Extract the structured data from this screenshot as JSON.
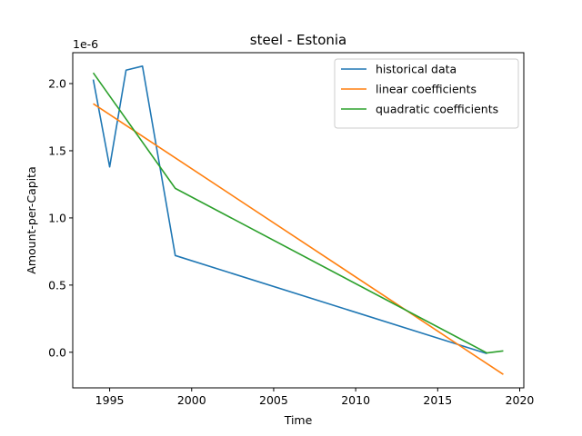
{
  "chart_data": {
    "type": "line",
    "title": "steel - Estonia",
    "xlabel": "Time",
    "ylabel": "Amount-per-Capita",
    "y_offset_label": "1e-6",
    "xlim": [
      1992.75,
      2020.25
    ],
    "ylim": [
      -0.265,
      2.23
    ],
    "x_ticks": [
      1995,
      2000,
      2005,
      2010,
      2015,
      2020
    ],
    "y_ticks": [
      0.0,
      0.5,
      1.0,
      1.5,
      2.0
    ],
    "y_tick_labels": [
      "0.0",
      "0.5",
      "1.0",
      "1.5",
      "2.0"
    ],
    "grid": false,
    "legend_position": "top-right",
    "series": [
      {
        "name": "historical data",
        "color": "#1f77b4",
        "x": [
          1994,
          1995,
          1996,
          1997,
          1999,
          2018
        ],
        "y": [
          2.03,
          1.38,
          2.1,
          2.13,
          0.72,
          -0.01
        ]
      },
      {
        "name": "linear coefficients",
        "color": "#ff7f0e",
        "x": [
          1994,
          2019
        ],
        "y": [
          1.85,
          -0.165
        ]
      },
      {
        "name": "quadratic coefficients",
        "color": "#2ca02c",
        "x": [
          1994,
          1999,
          2018,
          2019
        ],
        "y": [
          2.08,
          1.22,
          -0.005,
          0.01
        ]
      }
    ]
  }
}
